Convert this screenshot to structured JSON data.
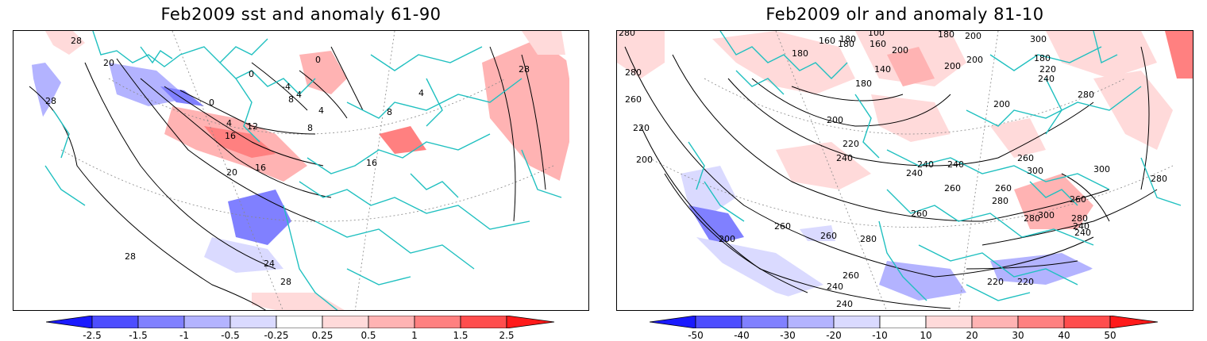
{
  "panels": [
    {
      "title": "Feb2009 sst and anomaly 61-90",
      "colorbar": {
        "labels": [
          "-2.5",
          "-1.5",
          "-1",
          "-0.5",
          "-0.25",
          "0.25",
          "0.5",
          "1",
          "1.5",
          "2.5"
        ],
        "colors": [
          "#1a1aff",
          "#4d4dff",
          "#8080ff",
          "#b3b3ff",
          "#dadaff",
          "#ffffff",
          "#ffdada",
          "#ffb3b3",
          "#ff8080",
          "#ff4d4d",
          "#ff1a1a"
        ]
      },
      "contour_labels": [
        "28",
        "28",
        "20",
        "28",
        "0",
        "0",
        "-4",
        "4",
        "8",
        "4",
        "0",
        "4",
        "16",
        "12",
        "8",
        "8",
        "4",
        "16",
        "20",
        "16",
        "24",
        "28",
        "28"
      ]
    },
    {
      "title": "Feb2009 olr and anomaly 81-10",
      "colorbar": {
        "labels": [
          "-50",
          "-40",
          "-30",
          "-20",
          "-10",
          "10",
          "20",
          "30",
          "40",
          "50"
        ],
        "colors": [
          "#1a1aff",
          "#4d4dff",
          "#8080ff",
          "#b3b3ff",
          "#dadaff",
          "#ffffff",
          "#ffdada",
          "#ffb3b3",
          "#ff8080",
          "#ff4d4d",
          "#ff1a1a"
        ]
      },
      "contour_labels": [
        "280",
        "160",
        "180",
        "180",
        "100",
        "160",
        "140",
        "200",
        "180",
        "280",
        "260",
        "180",
        "200",
        "200",
        "180",
        "200",
        "300",
        "180",
        "220",
        "240",
        "280",
        "220",
        "200",
        "200",
        "220",
        "240",
        "240",
        "240",
        "260",
        "300",
        "300",
        "280",
        "200",
        "240",
        "260",
        "260",
        "280",
        "260",
        "260",
        "260",
        "280",
        "300",
        "280",
        "260",
        "240",
        "200",
        "280",
        "240",
        "260",
        "240",
        "220",
        "220",
        "240"
      ]
    }
  ],
  "colors": {
    "coast": "#20c0c0",
    "contour": "#000000",
    "grid": "#888888"
  }
}
